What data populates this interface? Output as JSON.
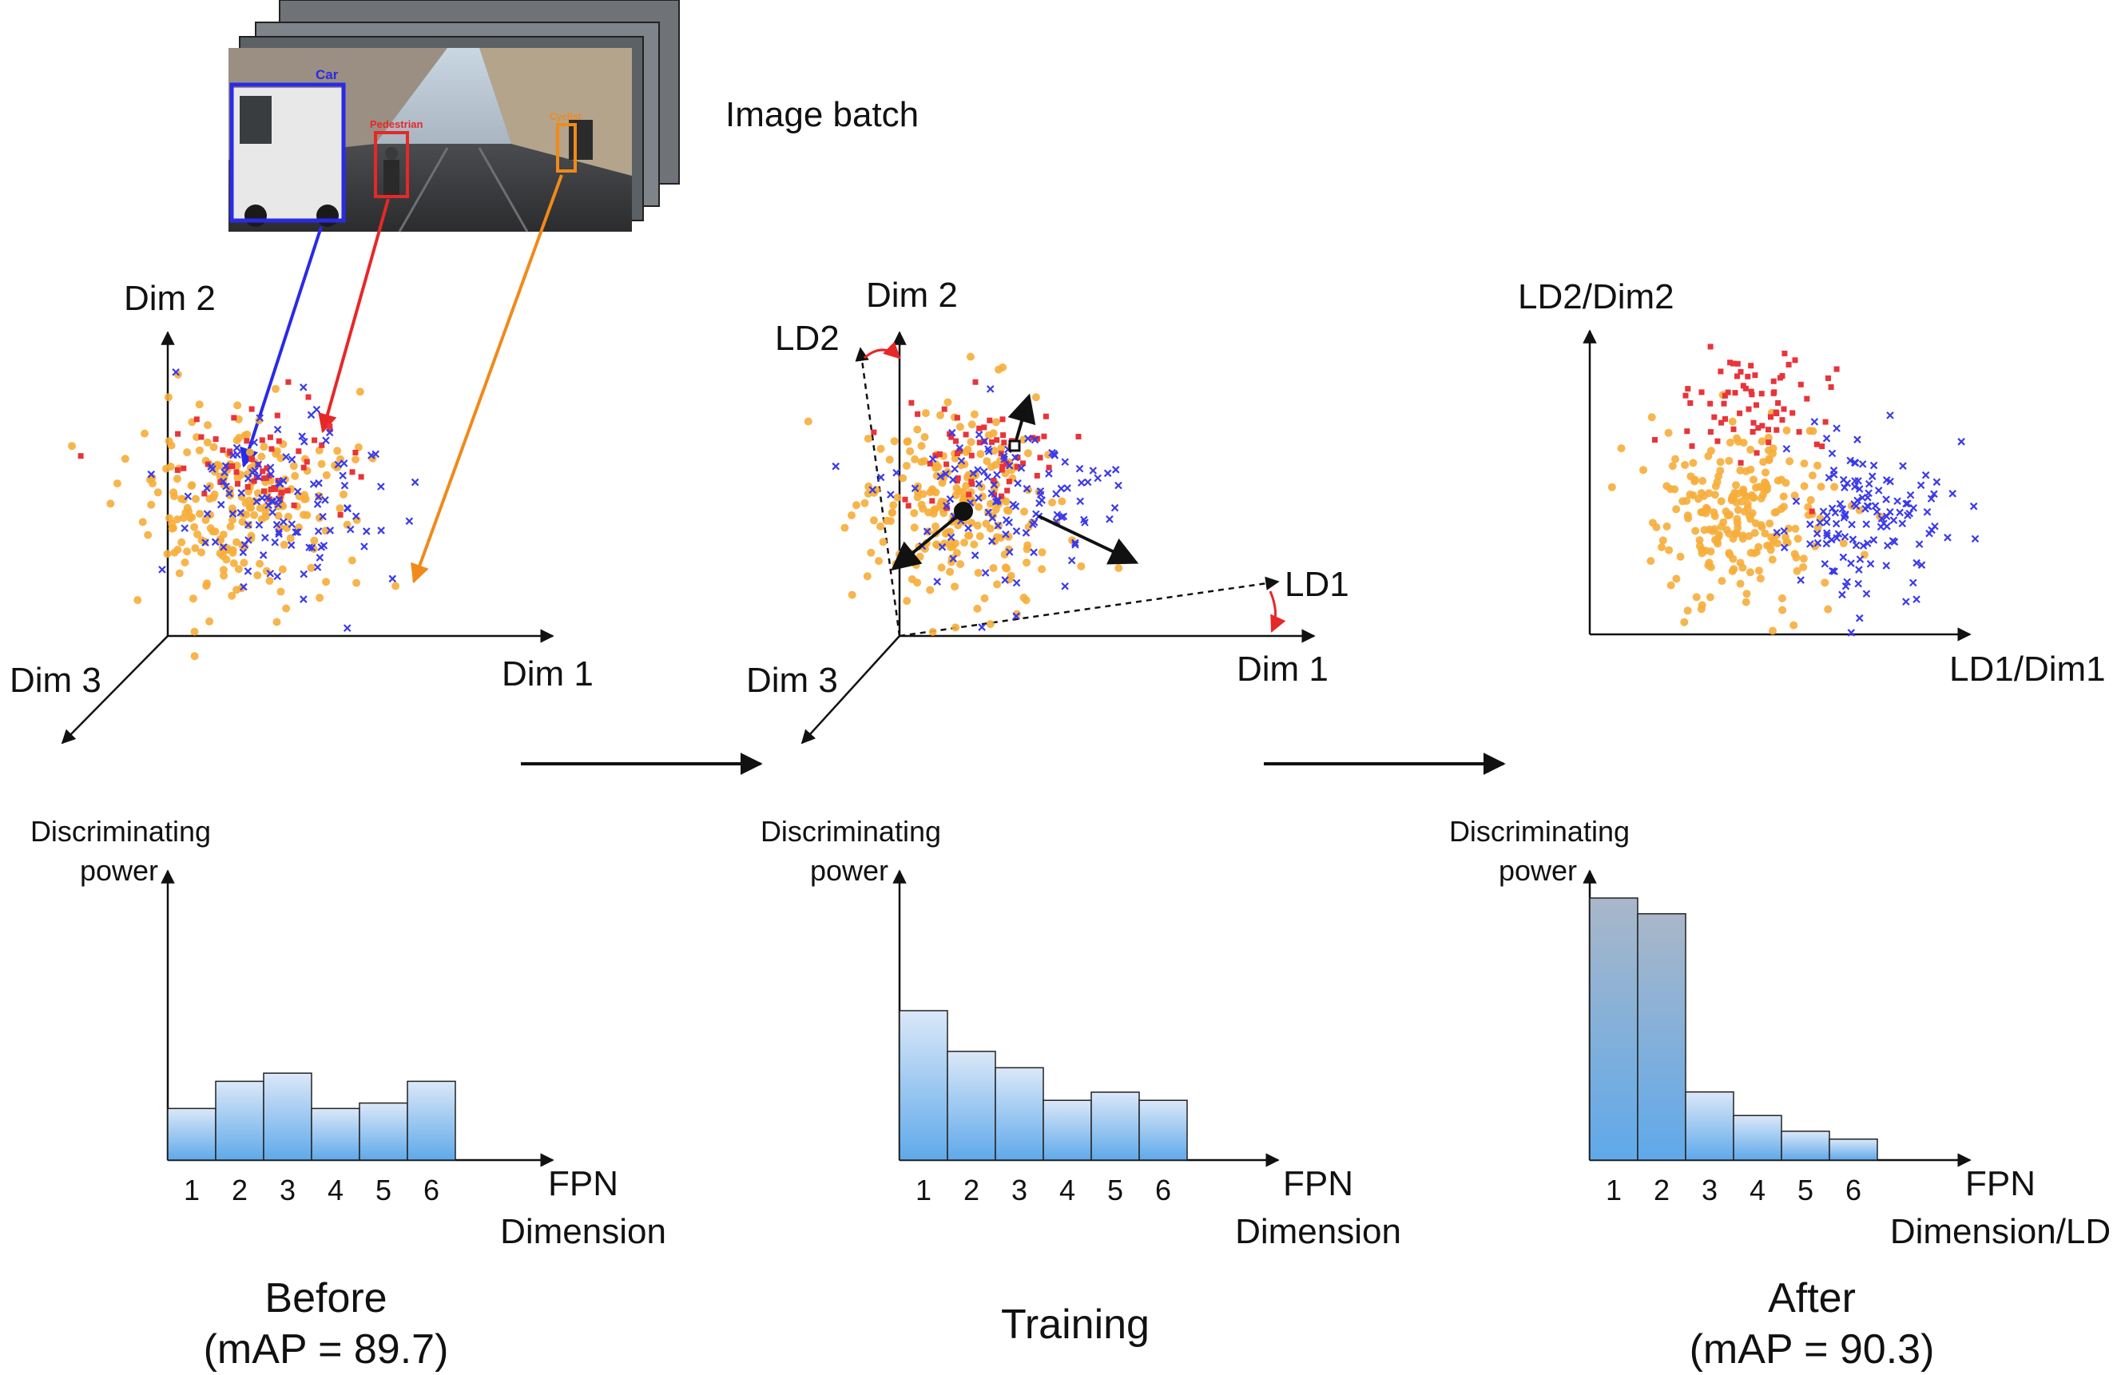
{
  "colors": {
    "car": "#2a2ae6",
    "pedestrian": "#e62828",
    "cyclist": "#f59a1f",
    "point_orange": "#f6ad3a",
    "point_blue": "#3a3aea",
    "point_red": "#e8343a",
    "bar_top": "#dbe8f8",
    "bar_bottom": "#5fa9ea",
    "bar_dark_top": "#a9b7c9",
    "axis": "#111111"
  },
  "image_batch": {
    "label": "Image batch",
    "box_labels": {
      "car": "Car",
      "pedestrian": "Pedestrian",
      "cyclist": "Cyclist"
    }
  },
  "panels": [
    {
      "id": "before",
      "axes": {
        "dim1": "Dim 1",
        "dim2": "Dim 2",
        "dim3": "Dim 3"
      },
      "bar_chart": {
        "ylabel_line1": "Discriminating",
        "ylabel_line2": "power",
        "xlabel_line1": "FPN",
        "xlabel_line2": "Dimension",
        "categories": [
          "1",
          "2",
          "3",
          "4",
          "5",
          "6"
        ],
        "values": [
          0.19,
          0.29,
          0.32,
          0.19,
          0.21,
          0.29
        ],
        "ylim": [
          0,
          1
        ]
      },
      "caption_line1": "Before",
      "caption_line2": "(mAP = 89.7)"
    },
    {
      "id": "training",
      "axes": {
        "dim1": "Dim 1",
        "dim2": "Dim 2",
        "dim3": "Dim 3",
        "ld1": "LD1",
        "ld2": "LD2"
      },
      "bar_chart": {
        "ylabel_line1": "Discriminating",
        "ylabel_line2": "power",
        "xlabel_line1": "FPN",
        "xlabel_line2": "Dimension",
        "categories": [
          "1",
          "2",
          "3",
          "4",
          "5",
          "6"
        ],
        "values": [
          0.55,
          0.4,
          0.34,
          0.22,
          0.25,
          0.22
        ],
        "ylim": [
          0,
          1
        ]
      },
      "caption_line1": "Training"
    },
    {
      "id": "after",
      "axes": {
        "xlabel": "LD1/Dim1",
        "ylabel": "LD2/Dim2"
      },
      "bar_chart": {
        "ylabel_line1": "Discriminating",
        "ylabel_line2": "power",
        "xlabel_line1": "FPN",
        "xlabel_line2": "Dimension/LD",
        "categories": [
          "1",
          "2",
          "3",
          "4",
          "5",
          "6"
        ],
        "values": [
          1.0,
          0.94,
          0.26,
          0.17,
          0.11,
          0.08
        ],
        "ylim": [
          0,
          1
        ]
      },
      "caption_line1": "After",
      "caption_line2": "(mAP = 90.3)"
    }
  ],
  "chart_data": [
    {
      "type": "bar",
      "title": "Before",
      "xlabel": "FPN Dimension",
      "ylabel": "Discriminating power",
      "categories": [
        "1",
        "2",
        "3",
        "4",
        "5",
        "6"
      ],
      "values": [
        0.19,
        0.29,
        0.32,
        0.19,
        0.21,
        0.29
      ],
      "ylim": [
        0,
        1
      ]
    },
    {
      "type": "bar",
      "title": "Training",
      "xlabel": "FPN Dimension",
      "ylabel": "Discriminating power",
      "categories": [
        "1",
        "2",
        "3",
        "4",
        "5",
        "6"
      ],
      "values": [
        0.55,
        0.4,
        0.34,
        0.22,
        0.25,
        0.22
      ],
      "ylim": [
        0,
        1
      ]
    },
    {
      "type": "bar",
      "title": "After",
      "xlabel": "FPN Dimension/LD",
      "ylabel": "Discriminating power",
      "categories": [
        "1",
        "2",
        "3",
        "4",
        "5",
        "6"
      ],
      "values": [
        1.0,
        0.94,
        0.26,
        0.17,
        0.11,
        0.08
      ],
      "ylim": [
        0,
        1
      ]
    }
  ]
}
